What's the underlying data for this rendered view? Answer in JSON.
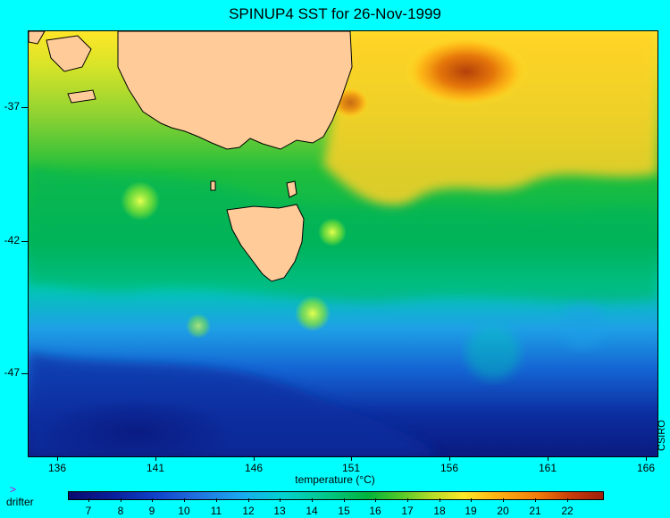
{
  "title": "SPINUP4 SST for 26-Nov-1999",
  "lat_labels": [
    "-37",
    "-42",
    "-47"
  ],
  "lon_labels": [
    "136",
    "141",
    "146",
    "151",
    "156",
    "161",
    "166"
  ],
  "credit": "CSIRO",
  "colorbar": {
    "title": "temperature (°C)",
    "labels": [
      "7",
      "8",
      "9",
      "10",
      "11",
      "12",
      "13",
      "14",
      "15",
      "16",
      "17",
      "18",
      "19",
      "20",
      "21",
      "22"
    ]
  },
  "legend": {
    "marker": ">",
    "label": "drifter"
  },
  "colors": {
    "background": "#00ffff",
    "land": "#ffcc99",
    "cold": "#0a1a80",
    "warm": "#c05010"
  }
}
